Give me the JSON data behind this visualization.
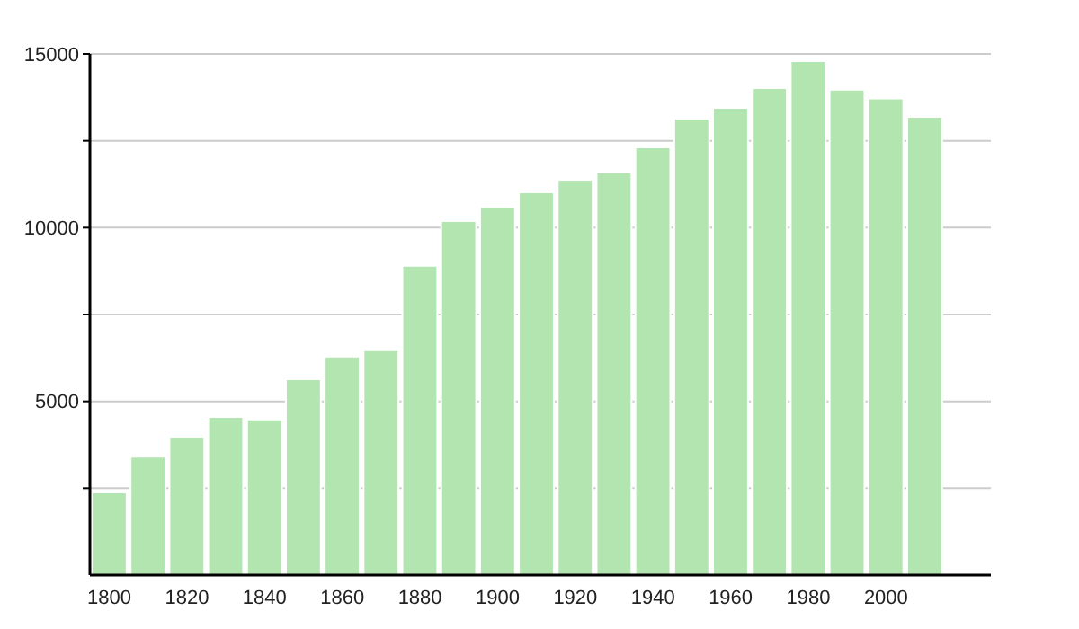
{
  "chart_data": {
    "type": "bar",
    "x": [
      1800,
      1810,
      1820,
      1830,
      1840,
      1850,
      1860,
      1870,
      1880,
      1890,
      1900,
      1910,
      1920,
      1930,
      1940,
      1950,
      1960,
      1970,
      1980,
      1990,
      2000,
      2010
    ],
    "values": [
      2380,
      3410,
      3980,
      4550,
      4480,
      5640,
      6290,
      6470,
      8900,
      10190,
      10590,
      11020,
      11380,
      11590,
      12310,
      13140,
      13450,
      14020,
      14790,
      13970,
      13720,
      13190
    ],
    "color": "#b3e5b0",
    "xlim": [
      1795,
      2027
    ],
    "xticks": [
      1800,
      1820,
      1840,
      1860,
      1880,
      1900,
      1920,
      1940,
      1960,
      1980,
      2000
    ],
    "ylim": [
      0,
      15000
    ],
    "yticks": [
      {
        "value": 2500,
        "label": null
      },
      5000,
      {
        "value": 7500,
        "label": null
      },
      10000,
      {
        "value": 12500,
        "label": null
      },
      15000
    ],
    "grid": "y",
    "legend": false
  }
}
